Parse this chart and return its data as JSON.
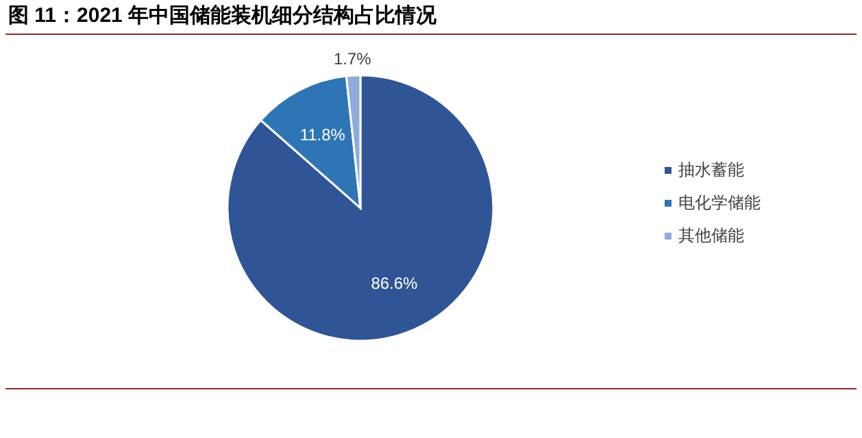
{
  "chart_data": {
    "type": "pie",
    "title": "图 11：2021 年中国储能装机细分结构占比情况",
    "categories": [
      "抽水蓄能",
      "电化学储能",
      "其他储能"
    ],
    "values": [
      86.6,
      11.8,
      1.7
    ],
    "colors": [
      "#2f5597",
      "#2e75b6",
      "#8faadc"
    ],
    "value_labels": [
      "86.6%",
      "11.8%",
      "1.7%"
    ],
    "legend": "right"
  }
}
